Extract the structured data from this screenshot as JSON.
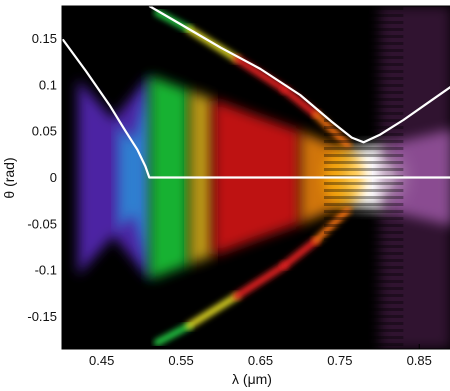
{
  "chart_data": {
    "type": "heatmap",
    "title": "",
    "xlabel": "λ (μm)",
    "ylabel": "θ (rad)",
    "xlim": [
      0.4,
      0.89
    ],
    "ylim": [
      -0.185,
      0.185
    ],
    "x_ticks": [
      0.45,
      0.55,
      0.65,
      0.75,
      0.85
    ],
    "x_tick_labels": [
      "0.45",
      "0.55",
      "0.65",
      "0.75",
      "0.85"
    ],
    "y_ticks": [
      0.15,
      0.1,
      0.05,
      0,
      -0.05,
      -0.1,
      -0.15
    ],
    "y_tick_labels": [
      "0.15",
      "0.1",
      "0.05",
      "0",
      "-0.05",
      "-0.1",
      "-0.15"
    ],
    "grid": false,
    "legend": "none",
    "background": "#000000",
    "overlay_curves": [
      {
        "color": "#ffffff",
        "points": [
          [
            0.4,
            0.15
          ],
          [
            0.43,
            0.115
          ],
          [
            0.46,
            0.078
          ],
          [
            0.48,
            0.05
          ],
          [
            0.495,
            0.03
          ],
          [
            0.505,
            0.012
          ],
          [
            0.51,
            0.0
          ],
          [
            0.55,
            0.0
          ],
          [
            0.65,
            0.0
          ],
          [
            0.75,
            0.0
          ],
          [
            0.85,
            0.0
          ],
          [
            0.89,
            0.0
          ]
        ]
      },
      {
        "color": "#ffffff",
        "points": [
          [
            0.51,
            0.185
          ],
          [
            0.55,
            0.165
          ],
          [
            0.6,
            0.14
          ],
          [
            0.65,
            0.117
          ],
          [
            0.7,
            0.089
          ],
          [
            0.74,
            0.06
          ],
          [
            0.765,
            0.043
          ],
          [
            0.78,
            0.038
          ],
          [
            0.8,
            0.046
          ],
          [
            0.83,
            0.062
          ],
          [
            0.86,
            0.08
          ],
          [
            0.89,
            0.098
          ]
        ]
      }
    ],
    "color_bands": [
      {
        "from": 0.42,
        "to": 0.51,
        "color": "#5a2cc0"
      },
      {
        "from": 0.47,
        "to": 0.51,
        "color": "#2c8fd8"
      },
      {
        "from": 0.51,
        "to": 0.56,
        "color": "#1fd13a"
      },
      {
        "from": 0.56,
        "to": 0.59,
        "color": "#d9b21a"
      },
      {
        "from": 0.59,
        "to": 0.7,
        "color": "#e01818"
      },
      {
        "from": 0.7,
        "to": 0.76,
        "color": "#f58a10"
      },
      {
        "from": 0.76,
        "to": 0.81,
        "color": "#ffffff"
      },
      {
        "from": 0.81,
        "to": 0.89,
        "color": "#c27ad2"
      }
    ]
  }
}
